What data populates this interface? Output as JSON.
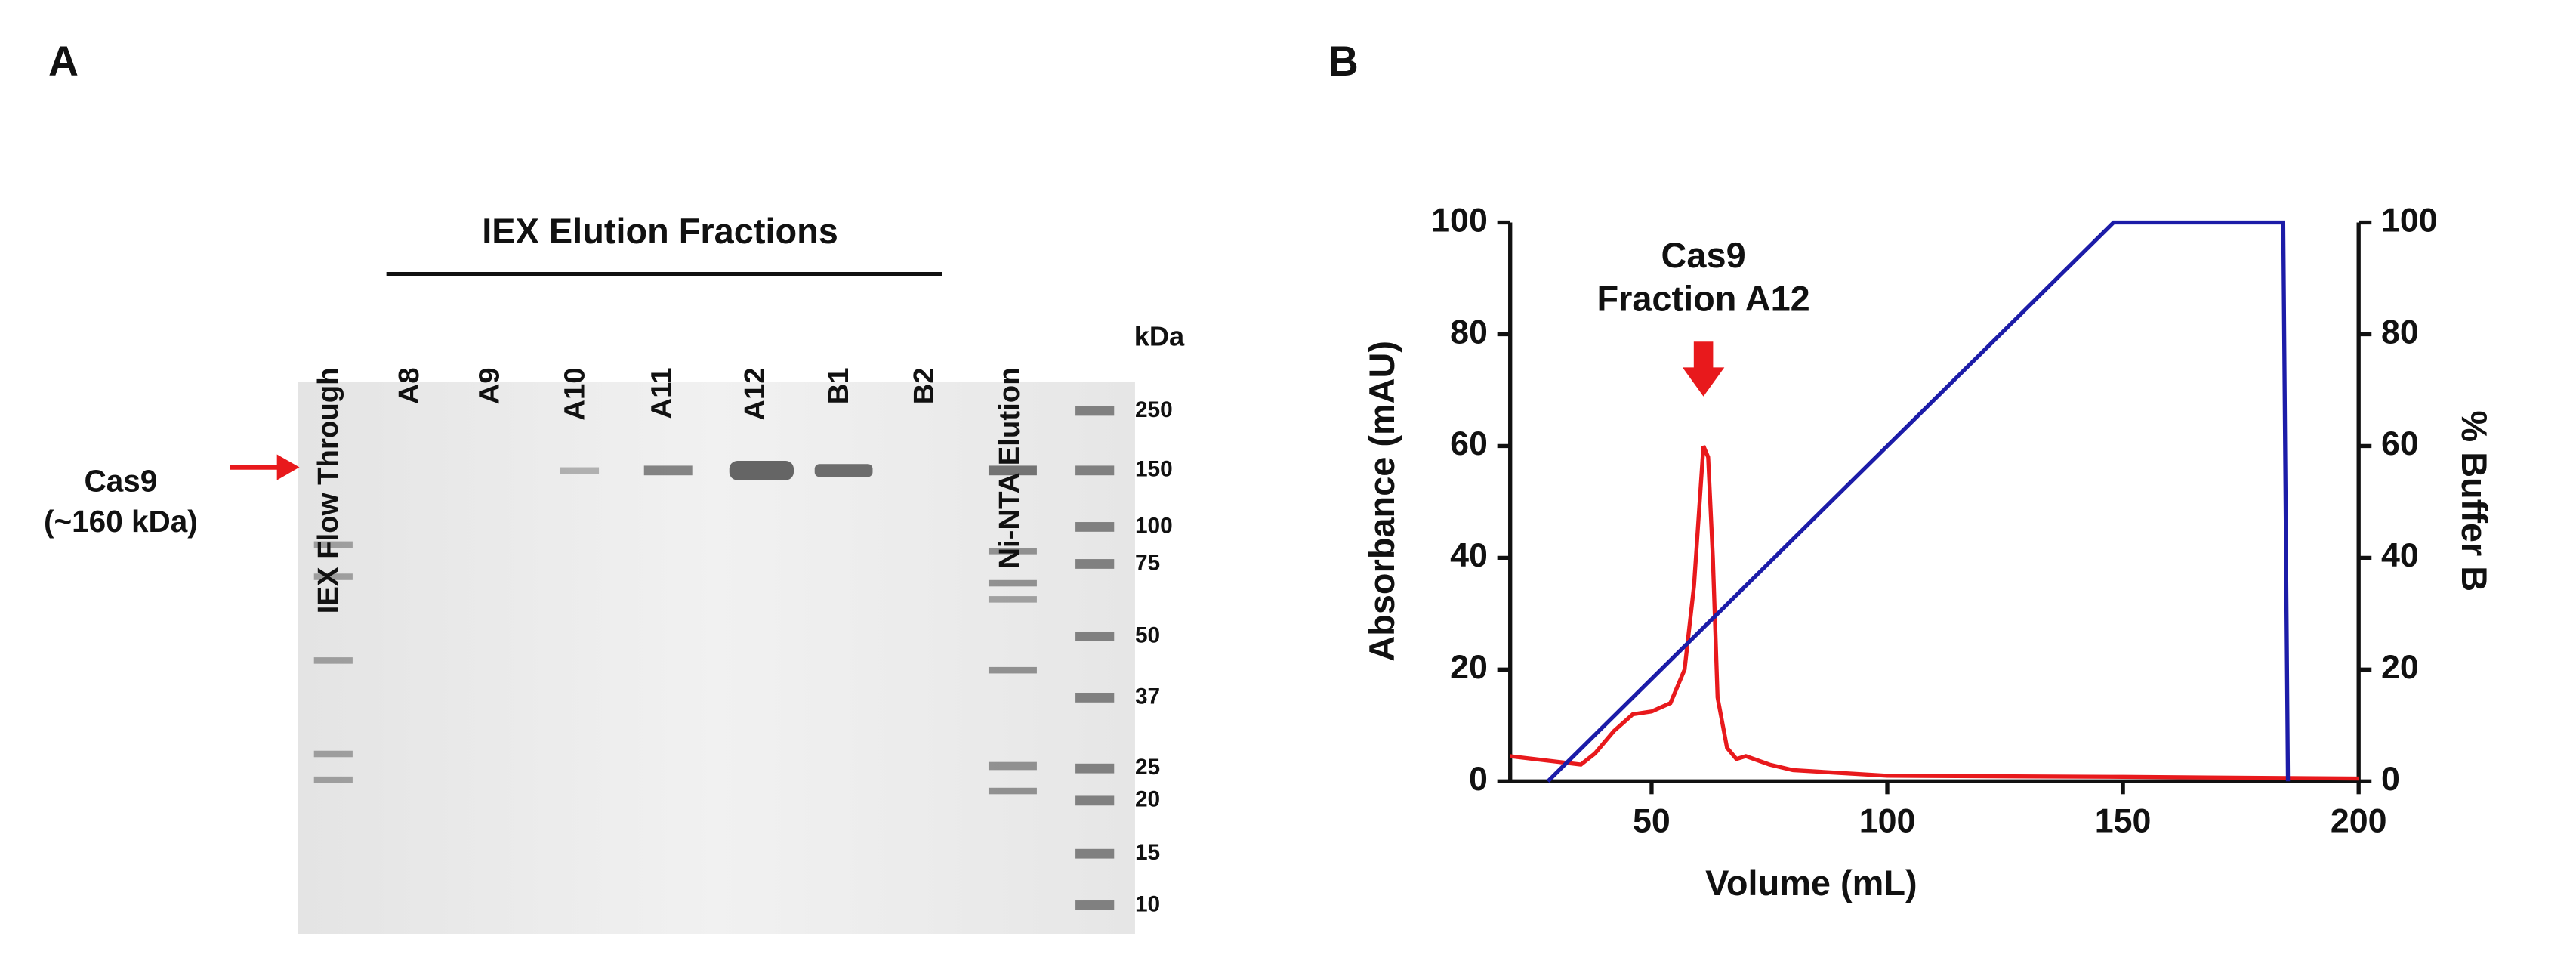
{
  "gel": {
    "panel": "A",
    "lanes": [
      "IEX Flow Through",
      "A8",
      "A9",
      "A10",
      "A11",
      "A12",
      "B1",
      "B2",
      "Ni-NTA Elution"
    ],
    "group_label": "IEX Elution Fractions",
    "unit": "kDa",
    "markers": [
      "250",
      "150",
      "100",
      "75",
      "50",
      "37",
      "25",
      "20",
      "15",
      "10"
    ],
    "target": [
      "Cas9",
      "(~160 kDa)"
    ]
  },
  "chart_data": {
    "type": "line",
    "panel": "B",
    "xlabel": "Volume (mL)",
    "ylabel": "Absorbance (mAU)",
    "y2label": "% Buffer B",
    "annotation": [
      "Cas9",
      "Fraction A12"
    ],
    "annotation_x": 61,
    "xlim": [
      20,
      200
    ],
    "xticks": [
      50,
      100,
      150,
      200
    ],
    "ylim": [
      0,
      100
    ],
    "yticks": [
      0,
      20,
      40,
      60,
      80,
      100
    ],
    "y2lim": [
      0,
      100
    ],
    "y2ticks": [
      0,
      20,
      40,
      60,
      80,
      100
    ],
    "series": [
      {
        "color": "#e8191c",
        "x": [
          20,
          30,
          35,
          38,
          42,
          46,
          50,
          54,
          57,
          59,
          61,
          62,
          63,
          64,
          66,
          68,
          70,
          75,
          80,
          90,
          100,
          150,
          200
        ],
        "values": [
          4.5,
          3.5,
          3,
          5,
          9,
          12,
          12.5,
          14,
          20,
          35,
          60,
          58,
          40,
          15,
          6,
          4,
          4.5,
          3,
          2,
          1.5,
          1,
          0.8,
          0.5
        ]
      },
      {
        "color": "#1c1ca8",
        "axis": "y2",
        "x": [
          28,
          148,
          184,
          185
        ],
        "values": [
          0,
          100,
          100,
          0
        ]
      }
    ]
  }
}
